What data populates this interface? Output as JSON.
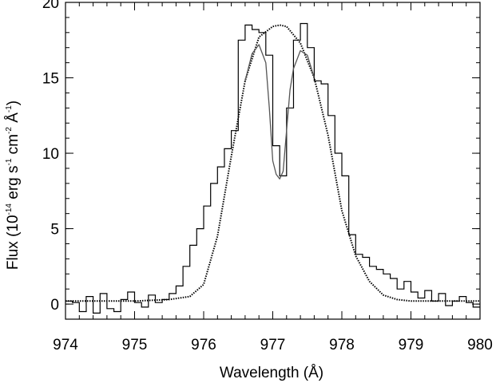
{
  "chart_data": {
    "type": "line",
    "title": "",
    "xlabel": "Wavelength (Å)",
    "ylabel": {
      "parts": [
        "Flux (10",
        "-14",
        " erg s",
        "-1",
        " cm",
        "-2",
        " Å",
        "-1",
        ")"
      ]
    },
    "xlim": [
      974,
      980
    ],
    "ylim": [
      -1,
      20
    ],
    "x_ticks": [
      974,
      975,
      976,
      977,
      978,
      979,
      980
    ],
    "y_ticks": [
      0,
      5,
      10,
      15,
      20
    ],
    "grid": false,
    "legend": "none",
    "series": [
      {
        "style": "histogram",
        "color": "#000000",
        "x": [
          974.0,
          974.1,
          974.2,
          974.3,
          974.4,
          974.5,
          974.6,
          974.7,
          974.8,
          974.9,
          975.0,
          975.1,
          975.2,
          975.3,
          975.4,
          975.5,
          975.6,
          975.7,
          975.8,
          975.9,
          976.0,
          976.1,
          976.2,
          976.3,
          976.4,
          976.5,
          976.6,
          976.7,
          976.8,
          976.9,
          977.0,
          977.1,
          977.2,
          977.3,
          977.4,
          977.5,
          977.6,
          977.7,
          977.8,
          977.9,
          978.0,
          978.1,
          978.2,
          978.3,
          978.4,
          978.5,
          978.6,
          978.7,
          978.8,
          978.9,
          979.0,
          979.1,
          979.2,
          979.3,
          979.4,
          979.5,
          979.6,
          979.7,
          979.8,
          979.9
        ],
        "y": [
          0.2,
          0.1,
          -0.5,
          0.5,
          -0.6,
          0.7,
          -0.3,
          -0.5,
          0.3,
          0.8,
          0.1,
          -0.2,
          0.6,
          0.1,
          0.3,
          0.7,
          1.2,
          2.5,
          3.9,
          5.0,
          6.5,
          8.0,
          9.1,
          10.3,
          11.5,
          17.5,
          18.5,
          18.2,
          18.0,
          16.5,
          10.5,
          8.5,
          13.0,
          17.5,
          18.6,
          17.0,
          14.8,
          14.6,
          12.5,
          10.0,
          8.5,
          4.6,
          3.3,
          3.1,
          2.5,
          2.3,
          2.0,
          1.7,
          1.0,
          1.5,
          0.8,
          0.4,
          0.9,
          0.2,
          0.7,
          -0.1,
          0.2,
          0.5,
          0.1,
          -0.2
        ]
      },
      {
        "style": "dotted",
        "color": "#000000",
        "x": [
          974.0,
          974.5,
          975.0,
          975.5,
          975.8,
          976.0,
          976.2,
          976.4,
          976.6,
          976.8,
          977.0,
          977.1,
          977.2,
          977.4,
          977.6,
          977.8,
          978.0,
          978.2,
          978.4,
          978.6,
          978.8,
          979.0,
          979.5,
          980.0
        ],
        "y": [
          0.2,
          0.2,
          0.2,
          0.3,
          0.5,
          1.3,
          4.5,
          9.8,
          14.8,
          17.7,
          18.4,
          18.5,
          18.4,
          17.3,
          15.0,
          11.2,
          6.2,
          3.2,
          1.5,
          0.6,
          0.3,
          0.2,
          0.2,
          0.2
        ]
      },
      {
        "style": "solid-gray",
        "color": "#555555",
        "x": [
          976.6,
          976.7,
          976.8,
          976.9,
          976.95,
          977.0,
          977.05,
          977.1,
          977.15,
          977.2,
          977.25,
          977.3,
          977.4,
          977.5,
          977.6
        ],
        "y": [
          14.8,
          16.6,
          17.2,
          16.0,
          13.0,
          9.5,
          8.6,
          8.3,
          8.8,
          11.5,
          14.2,
          15.6,
          16.8,
          16.5,
          15.0
        ]
      }
    ]
  }
}
